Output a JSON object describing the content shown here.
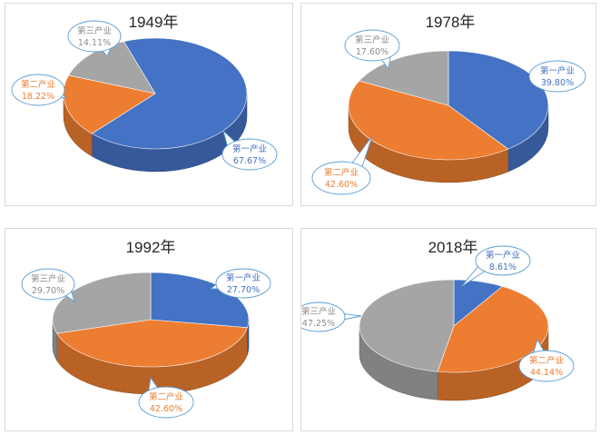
{
  "colors": {
    "primary": "#4472C4",
    "secondary": "#ED7D31",
    "tertiary": "#A5A5A5",
    "bubble_border": "#5B9BD5"
  },
  "chart_data": [
    {
      "type": "pie",
      "title": "1949年",
      "slices": [
        {
          "label": "第一产业",
          "value": 67.67,
          "value_label": "67.67%"
        },
        {
          "label": "第二产业",
          "value": 18.22,
          "value_label": "18.22%"
        },
        {
          "label": "第三产业",
          "value": 14.11,
          "value_label": "14.11%"
        }
      ]
    },
    {
      "type": "pie",
      "title": "1978年",
      "slices": [
        {
          "label": "第一产业",
          "value": 39.8,
          "value_label": "39.80%"
        },
        {
          "label": "第二产业",
          "value": 42.6,
          "value_label": "42.60%"
        },
        {
          "label": "第三产业",
          "value": 17.6,
          "value_label": "17.60%"
        }
      ]
    },
    {
      "type": "pie",
      "title": "1992年",
      "slices": [
        {
          "label": "第一产业",
          "value": 27.7,
          "value_label": "27.70%"
        },
        {
          "label": "第二产业",
          "value": 42.6,
          "value_label": "42.60%"
        },
        {
          "label": "第三产业",
          "value": 29.7,
          "value_label": "29.70%"
        }
      ]
    },
    {
      "type": "pie",
      "title": "2018年",
      "slices": [
        {
          "label": "第一产业",
          "value": 8.61,
          "value_label": "8.61%"
        },
        {
          "label": "第二产业",
          "value": 44.14,
          "value_label": "44.14%"
        },
        {
          "label": "第三产业",
          "value": 47.25,
          "value_label": "47.25%"
        }
      ]
    }
  ]
}
